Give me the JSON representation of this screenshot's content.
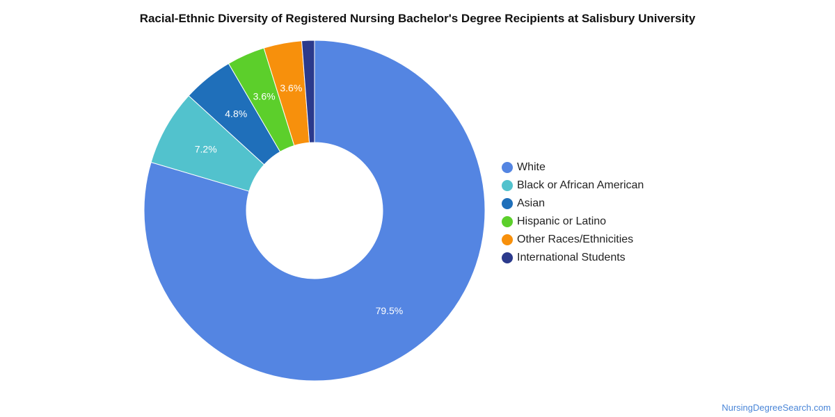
{
  "chart_data": {
    "type": "pie",
    "title": "Racial-Ethnic Diversity of Registered Nursing Bachelor's Degree Recipients at Salisbury University",
    "categories": [
      "White",
      "Black or African American",
      "Asian",
      "Hispanic or Latino",
      "Other Races/Ethnicities",
      "International Students"
    ],
    "values": [
      79.5,
      7.2,
      4.8,
      3.6,
      3.6,
      1.2
    ],
    "labels": [
      "79.5%",
      "7.2%",
      "4.8%",
      "3.6%",
      "3.6%",
      ""
    ],
    "colors": [
      "#5485e2",
      "#52c2cd",
      "#1f6fba",
      "#5ccf2b",
      "#f7900c",
      "#2b3a8c"
    ],
    "legend_position": "right",
    "donut": true
  },
  "watermark": "NursingDegreeSearch.com"
}
